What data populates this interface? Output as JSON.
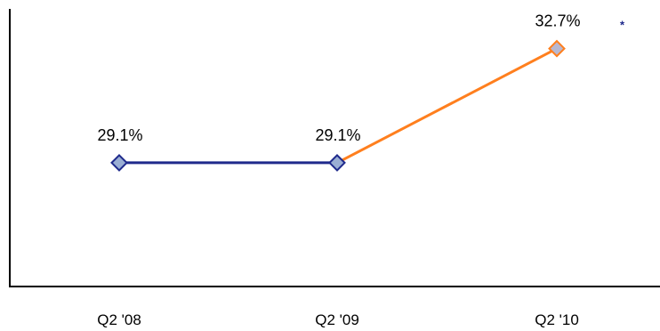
{
  "chart_data": {
    "type": "line",
    "categories": [
      "Q2 '08",
      "Q2 '09",
      "Q2 '10"
    ],
    "values": [
      29.1,
      29.1,
      32.7
    ],
    "data_labels": [
      "29.1%",
      "29.1%",
      "32.7%"
    ],
    "point_styles": [
      "blue",
      "blue",
      "orange"
    ],
    "segment_styles": [
      "blue",
      "orange"
    ],
    "footnote_marker": "*",
    "footnote_point_index": 2,
    "ylim": [
      25.2,
      33.95
    ],
    "grid": false,
    "legend": "none",
    "title": "",
    "xlabel": "",
    "ylabel": "",
    "colors": {
      "blue_line": "#1f2a8c",
      "blue_fill": "#9aaed4",
      "orange_line": "#ff7f1e",
      "orange_fill": "#b8b8d0",
      "axis": "#000000",
      "footnote": "#1f2a8c"
    }
  }
}
